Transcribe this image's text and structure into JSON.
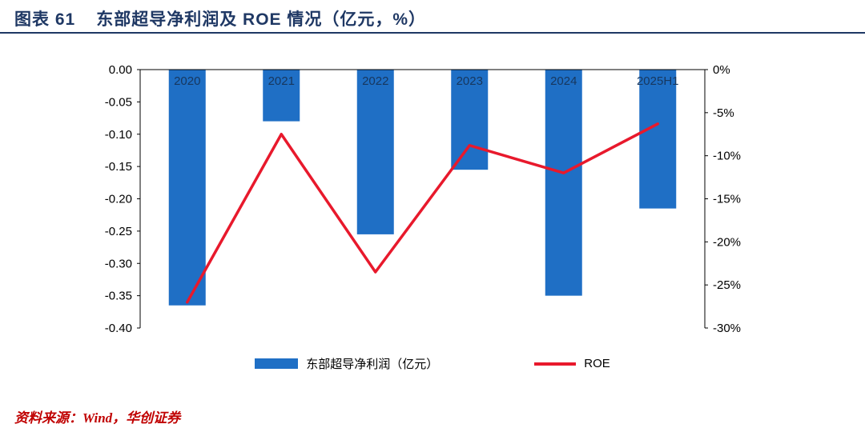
{
  "header": {
    "title_prefix": "图表 61",
    "title_text": "东部超导净利润及 ROE 情况（亿元，%）",
    "accent_color": "#1F3864"
  },
  "chart_data": {
    "type": "bar",
    "subtype": "bar+line combo, negative values hanging from zero baseline",
    "categories": [
      "2020",
      "2021",
      "2022",
      "2023",
      "2024",
      "2025H1"
    ],
    "series": [
      {
        "name": "东部超导净利润（亿元）",
        "type": "bar",
        "axis": "left",
        "color": "#1F6FC5",
        "values": [
          -0.365,
          -0.08,
          -0.255,
          -0.155,
          -0.35,
          -0.215
        ]
      },
      {
        "name": "ROE",
        "type": "line",
        "axis": "right",
        "color": "#E8192C",
        "values": [
          -27.0,
          -7.5,
          -23.5,
          -8.8,
          -12.0,
          -6.3
        ]
      }
    ],
    "left_axis": {
      "min": -0.4,
      "max": 0.0,
      "tick_step": 0.05,
      "ticks": [
        "0.00",
        "-0.05",
        "-0.10",
        "-0.15",
        "-0.20",
        "-0.25",
        "-0.30",
        "-0.35",
        "-0.40"
      ]
    },
    "right_axis": {
      "min": -30,
      "max": 0,
      "tick_step": 5,
      "ticks": [
        "0%",
        "-5%",
        "-10%",
        "-15%",
        "-20%",
        "-25%",
        "-30%"
      ]
    },
    "grid": false,
    "legend_position": "bottom",
    "category_label_color": "#17375E",
    "axis_color": "#000000"
  },
  "legend": {
    "bar_label": "东部超导净利润（亿元）",
    "line_label": "ROE"
  },
  "footer": {
    "source": "资料来源：Wind，华创证券"
  }
}
